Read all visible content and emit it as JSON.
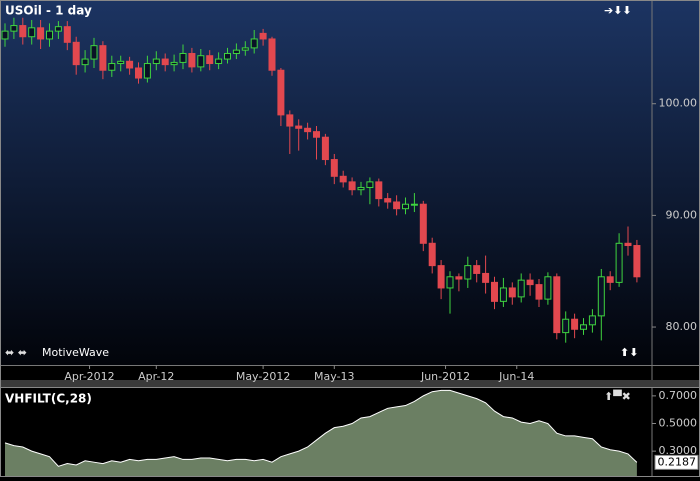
{
  "chart_data": [
    {
      "type": "candlestick",
      "title": "USOil - 1 day",
      "up_color": "#3fd43f",
      "down_color": "#e2484f",
      "ylim": [
        76.6,
        109.2
      ],
      "yticks": [
        {
          "value": 80,
          "label": "80.00"
        },
        {
          "value": 90,
          "label": "90.00"
        },
        {
          "value": 100,
          "label": "100.00"
        }
      ],
      "xticks": [
        {
          "value": 9.5,
          "label": "Apr-2012"
        },
        {
          "value": 17,
          "label": "Apr-12"
        },
        {
          "value": 29,
          "label": "May-2012"
        },
        {
          "value": 37,
          "label": "May-13"
        },
        {
          "value": 49.5,
          "label": "Jun-2012"
        },
        {
          "value": 57.5,
          "label": "Jun-14"
        }
      ],
      "open": [
        105.8,
        106.5,
        107.0,
        106.0,
        106.8,
        105.8,
        106.5,
        106.9,
        105.5,
        103.5,
        104.0,
        105.2,
        103.0,
        103.6,
        103.8,
        103.2,
        102.3,
        103.6,
        104.0,
        103.5,
        103.7,
        104.5,
        103.3,
        104.3,
        103.6,
        104.0,
        104.5,
        104.8,
        105.0,
        106.3,
        105.8,
        103.0,
        99.0,
        98.0,
        97.8,
        97.5,
        97.0,
        95.0,
        93.5,
        93.0,
        92.3,
        92.5,
        93.0,
        91.5,
        91.2,
        90.6,
        91.0,
        91.0,
        87.5,
        85.5,
        83.5,
        84.5,
        84.3,
        85.5,
        84.8,
        84.0,
        82.3,
        83.5,
        82.7,
        84.2,
        83.8,
        82.5,
        84.5,
        79.5,
        80.7,
        79.8,
        80.2,
        81.0,
        84.5,
        84.0,
        87.5,
        87.3
      ],
      "high": [
        107.2,
        107.7,
        107.7,
        107.5,
        107.5,
        107.2,
        107.4,
        107.4,
        106.0,
        104.8,
        105.9,
        105.6,
        104.3,
        104.3,
        104.2,
        103.7,
        104.3,
        104.7,
        104.5,
        104.4,
        105.3,
        105.0,
        104.9,
        104.8,
        104.6,
        105.0,
        105.4,
        105.6,
        106.6,
        106.7,
        106.0,
        103.2,
        99.4,
        98.6,
        98.3,
        98.0,
        97.3,
        95.5,
        94.0,
        93.4,
        93.0,
        93.4,
        93.3,
        92.0,
        91.8,
        91.6,
        92.0,
        91.3,
        88.0,
        86.0,
        85.0,
        84.8,
        86.3,
        86.0,
        86.4,
        84.5,
        84.4,
        84.0,
        84.8,
        84.8,
        84.3,
        84.9,
        84.8,
        81.4,
        81.2,
        80.8,
        81.6,
        85.2,
        85.0,
        88.4,
        89.0,
        87.8
      ],
      "low": [
        105.1,
        105.8,
        105.3,
        105.3,
        104.9,
        105.1,
        105.8,
        104.8,
        102.6,
        102.8,
        103.2,
        102.2,
        102.4,
        102.9,
        102.6,
        101.8,
        101.9,
        103.0,
        102.9,
        102.9,
        103.1,
        102.8,
        102.9,
        103.0,
        103.1,
        103.6,
        104.0,
        104.3,
        104.5,
        105.2,
        102.5,
        98.0,
        95.5,
        95.8,
        96.8,
        95.0,
        94.5,
        92.8,
        92.5,
        91.8,
        91.8,
        91.0,
        90.8,
        90.6,
        90.0,
        90.1,
        90.3,
        86.8,
        84.8,
        82.5,
        81.2,
        83.2,
        83.5,
        84.0,
        83.0,
        81.6,
        81.8,
        82.0,
        82.2,
        82.8,
        81.8,
        82.0,
        78.9,
        78.6,
        79.0,
        79.3,
        79.5,
        78.8,
        83.3,
        83.6,
        86.4,
        84.0
      ],
      "close": [
        106.5,
        107.0,
        106.0,
        106.8,
        105.8,
        106.5,
        106.9,
        105.5,
        103.5,
        104.0,
        105.2,
        103.0,
        103.6,
        103.8,
        103.2,
        102.3,
        103.6,
        104.0,
        103.5,
        103.7,
        104.5,
        103.3,
        104.3,
        103.6,
        104.0,
        104.5,
        104.8,
        105.0,
        105.8,
        105.8,
        103.0,
        99.0,
        98.0,
        97.8,
        97.5,
        97.0,
        95.0,
        93.5,
        93.0,
        92.3,
        92.5,
        93.0,
        91.5,
        91.2,
        90.6,
        91.0,
        91.0,
        87.5,
        85.5,
        83.5,
        84.5,
        84.3,
        85.5,
        84.8,
        84.0,
        82.3,
        83.5,
        82.7,
        84.2,
        83.8,
        82.5,
        84.5,
        79.5,
        80.7,
        79.8,
        80.2,
        81.0,
        84.5,
        84.0,
        87.5,
        87.3,
        84.5
      ]
    },
    {
      "type": "area",
      "title": "VHFILT(C,28)",
      "color": "#6b7f63",
      "line_color": "#ffffff",
      "ylim": [
        0.12,
        0.757
      ],
      "yticks": [
        {
          "value": 0.3,
          "label": "0.3000"
        },
        {
          "value": 0.5,
          "label": "0.5000"
        },
        {
          "value": 0.7,
          "label": "0.7000"
        }
      ],
      "values": [
        0.36,
        0.34,
        0.33,
        0.3,
        0.28,
        0.26,
        0.19,
        0.21,
        0.2,
        0.23,
        0.22,
        0.21,
        0.23,
        0.22,
        0.24,
        0.23,
        0.24,
        0.24,
        0.25,
        0.26,
        0.24,
        0.24,
        0.25,
        0.25,
        0.24,
        0.23,
        0.24,
        0.24,
        0.23,
        0.24,
        0.22,
        0.26,
        0.28,
        0.3,
        0.33,
        0.38,
        0.43,
        0.47,
        0.48,
        0.5,
        0.54,
        0.55,
        0.58,
        0.61,
        0.62,
        0.63,
        0.66,
        0.7,
        0.73,
        0.74,
        0.74,
        0.72,
        0.7,
        0.68,
        0.65,
        0.59,
        0.55,
        0.54,
        0.51,
        0.5,
        0.52,
        0.5,
        0.43,
        0.41,
        0.41,
        0.4,
        0.39,
        0.33,
        0.31,
        0.3,
        0.28,
        0.2187
      ]
    }
  ],
  "brand": "MotiveWave"
}
